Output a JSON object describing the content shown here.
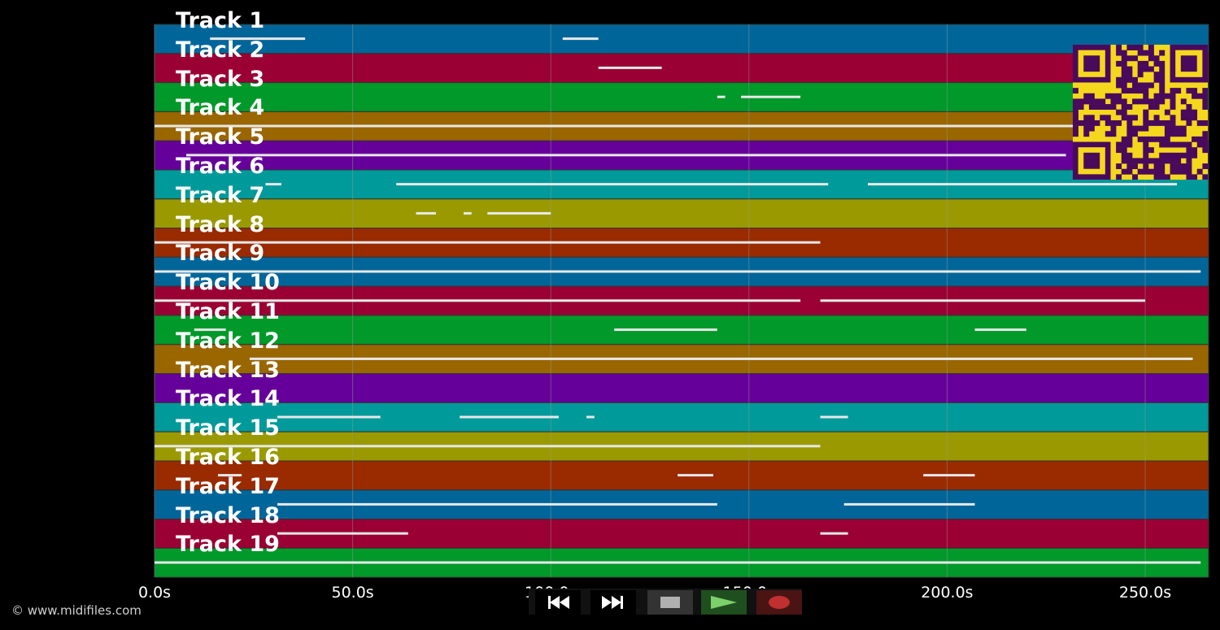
{
  "colors": {
    "background": "#000000",
    "note": "#e8e8e8",
    "grid": "#9a9a9a",
    "qr_fg": "#4a0a5c",
    "qr_bg": "#f5d71e",
    "track_palette": [
      "#00669a",
      "#9a0033",
      "#00992a",
      "#9a6600",
      "#66009a",
      "#009a9a",
      "#9a9a00",
      "#9a2a00"
    ]
  },
  "tracks": [
    {
      "label": "Track 1",
      "color": "#00669a"
    },
    {
      "label": "Track 2",
      "color": "#9a0033"
    },
    {
      "label": "Track 3",
      "color": "#00992a"
    },
    {
      "label": "Track 4",
      "color": "#9a6600"
    },
    {
      "label": "Track 5",
      "color": "#66009a"
    },
    {
      "label": "Track 6",
      "color": "#009a9a"
    },
    {
      "label": "Track 7",
      "color": "#9a9a00"
    },
    {
      "label": "Track 8",
      "color": "#9a2a00"
    },
    {
      "label": "Track 9",
      "color": "#00669a"
    },
    {
      "label": "Track 10",
      "color": "#9a0033"
    },
    {
      "label": "Track 11",
      "color": "#00992a"
    },
    {
      "label": "Track 12",
      "color": "#9a6600"
    },
    {
      "label": "Track 13",
      "color": "#66009a"
    },
    {
      "label": "Track 14",
      "color": "#009a9a"
    },
    {
      "label": "Track 15",
      "color": "#9a9a00"
    },
    {
      "label": "Track 16",
      "color": "#9a2a00"
    },
    {
      "label": "Track 17",
      "color": "#00669a"
    },
    {
      "label": "Track 18",
      "color": "#9a0033"
    },
    {
      "label": "Track 19",
      "color": "#00992a"
    }
  ],
  "time_axis": {
    "start_s": 0,
    "end_s": 266,
    "ticks": [
      {
        "value": 0,
        "label": "0.0s"
      },
      {
        "value": 50,
        "label": "50.0s"
      },
      {
        "value": 100,
        "label": "100.0s"
      },
      {
        "value": 150,
        "label": "150.0s"
      },
      {
        "value": 200,
        "label": "200.0s"
      },
      {
        "value": 250,
        "label": "250.0s"
      }
    ]
  },
  "note_segments": [
    [
      [
        14,
        38
      ],
      [
        103,
        112
      ]
    ],
    [
      [
        112,
        128
      ]
    ],
    [
      [
        142,
        144
      ],
      [
        148,
        163
      ]
    ],
    [
      [
        0,
        258
      ]
    ],
    [
      [
        8,
        230
      ]
    ],
    [
      [
        28,
        32
      ],
      [
        61,
        170
      ],
      [
        180,
        258
      ]
    ],
    [
      [
        66,
        71
      ],
      [
        78,
        80
      ],
      [
        84,
        100
      ]
    ],
    [
      [
        0,
        168
      ]
    ],
    [
      [
        0,
        264
      ]
    ],
    [
      [
        0,
        163
      ],
      [
        168,
        250
      ]
    ],
    [
      [
        10,
        18
      ],
      [
        116,
        142
      ],
      [
        207,
        220
      ]
    ],
    [
      [
        24,
        262
      ]
    ],
    [],
    [
      [
        31,
        57
      ],
      [
        77,
        102
      ],
      [
        109,
        111
      ],
      [
        168,
        175
      ]
    ],
    [
      [
        0,
        168
      ]
    ],
    [
      [
        16,
        22
      ],
      [
        132,
        141
      ],
      [
        194,
        207
      ]
    ],
    [
      [
        31,
        142
      ],
      [
        174,
        207
      ]
    ],
    [
      [
        31,
        64
      ],
      [
        168,
        175
      ]
    ],
    [
      [
        0,
        264
      ]
    ]
  ],
  "footer": {
    "copyright": "© www.midifiles.com"
  },
  "transport": {
    "rewind": {
      "icon": "rewind-icon",
      "color": "#ffffff"
    },
    "fast_forward": {
      "icon": "fast-forward-icon",
      "color": "#ffffff"
    },
    "stop": {
      "icon": "stop-icon",
      "color": "#b0b0b0"
    },
    "play": {
      "icon": "play-icon",
      "color": "#7ccf6a"
    },
    "record": {
      "icon": "record-icon",
      "color": "#c03030"
    }
  },
  "qr_code": {
    "icon": "qr-code"
  }
}
